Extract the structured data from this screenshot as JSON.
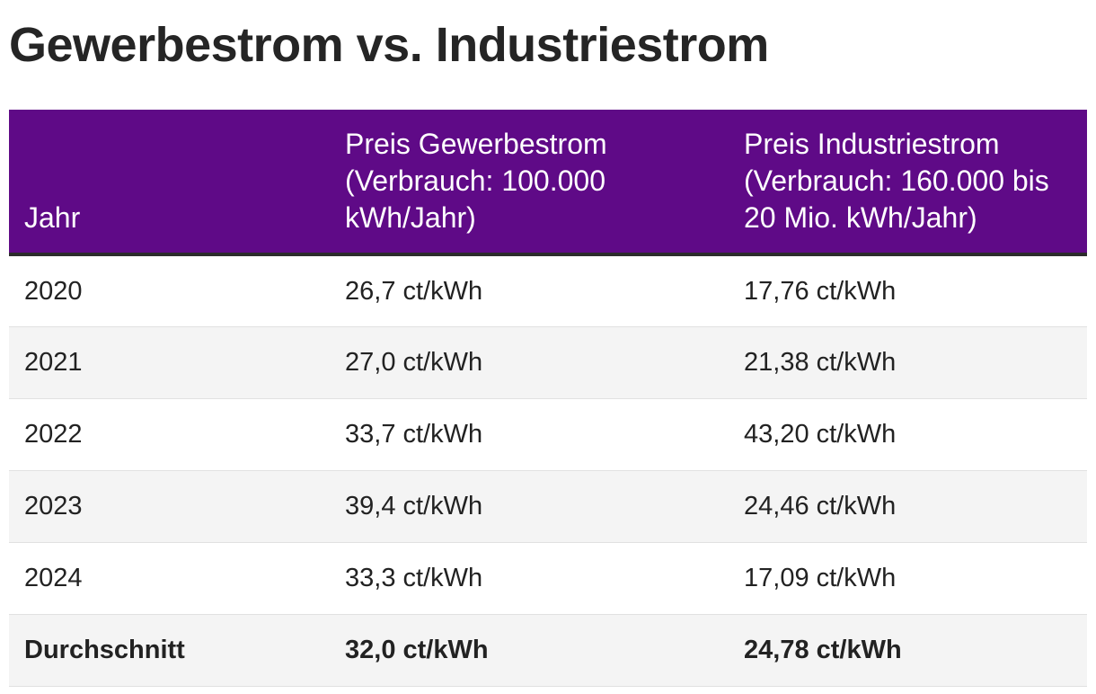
{
  "title": "Gewerbestrom vs. Industriestrom",
  "colors": {
    "header_bg": "#5f0a87",
    "header_text": "#ffffff",
    "alt_row_bg": "#f4f4f4"
  },
  "table": {
    "headers": [
      "Jahr",
      "Preis Gewerbestrom (Verbrauch: 100.000 kWh/Jahr)",
      "Preis Industriestrom (Verbrauch: 160.000 bis 20 Mio. kWh/Jahr)"
    ],
    "rows": [
      [
        "2020",
        "26,7 ct/kWh",
        "17,76 ct/kWh"
      ],
      [
        "2021",
        "27,0 ct/kWh",
        "21,38 ct/kWh"
      ],
      [
        "2022",
        "33,7 ct/kWh",
        "43,20 ct/kWh"
      ],
      [
        "2023",
        "39,4 ct/kWh",
        "24,46 ct/kWh"
      ],
      [
        "2024",
        "33,3 ct/kWh",
        "17,09 ct/kWh"
      ]
    ],
    "average": [
      "Durchschnitt",
      "32,0 ct/kWh",
      "24,78 ct/kWh"
    ]
  }
}
